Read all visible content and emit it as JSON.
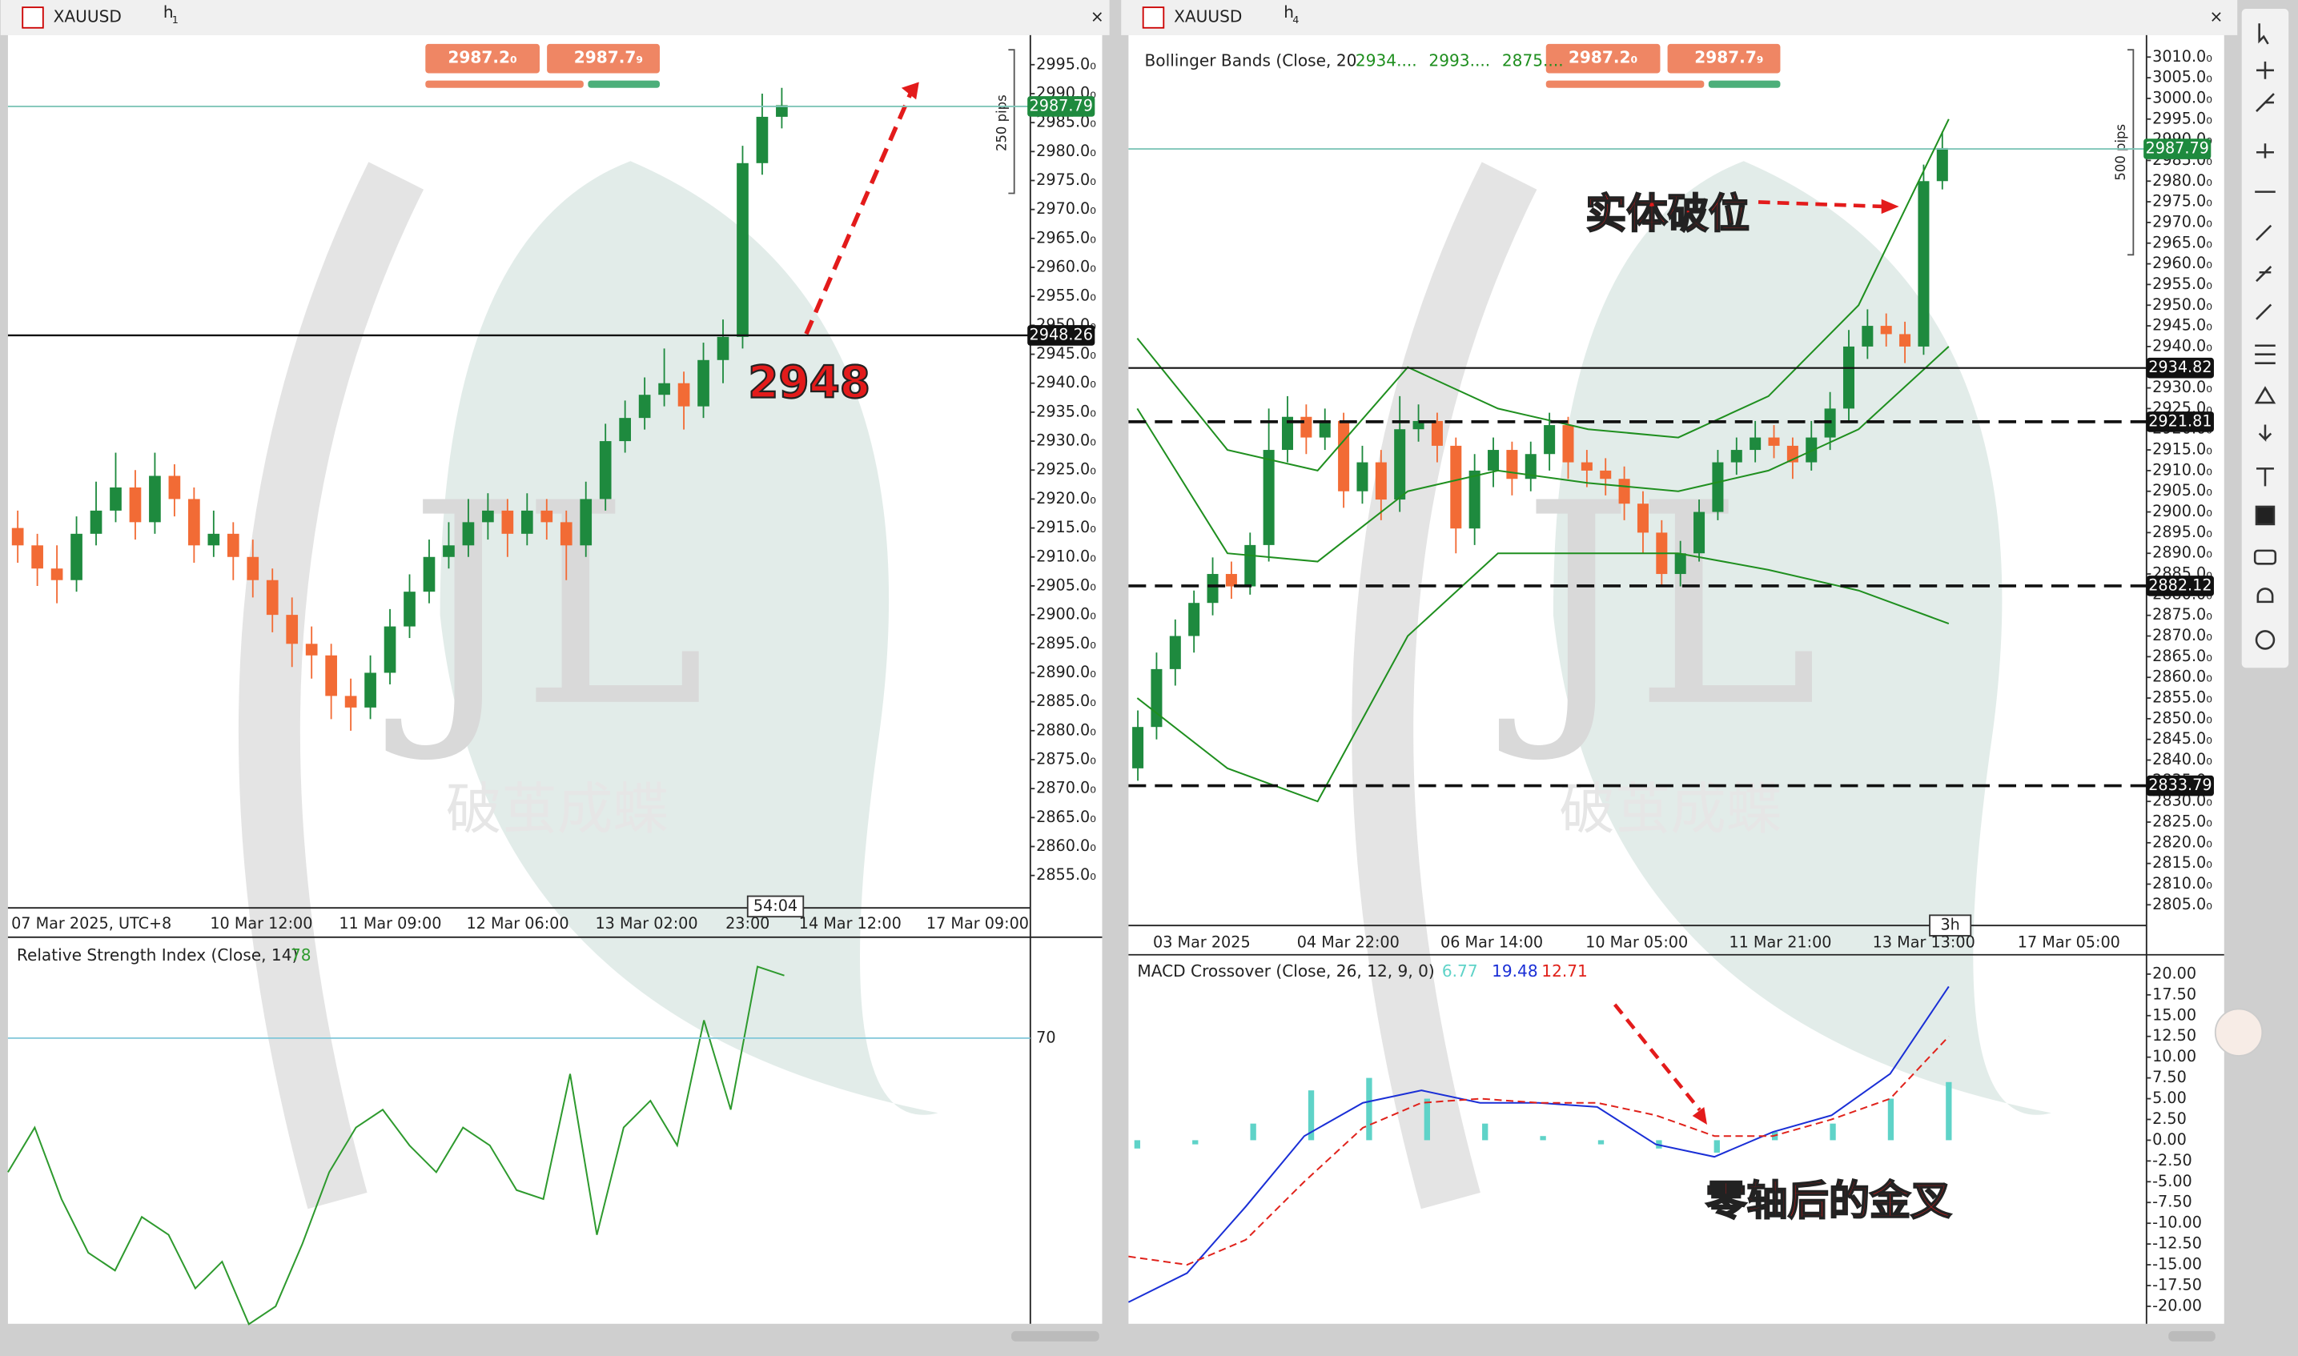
{
  "left": {
    "symbol": "XAUUSD",
    "tf": "h",
    "tf_n": "1",
    "sell": "2987.2₀",
    "buy": "2987.7₉",
    "pips": "250 pips",
    "price": {
      "type": "candlestick",
      "up_color": "#1e8a3e",
      "down_color": "#f26b35",
      "ylim": [
        2849.4,
        3000.1
      ],
      "yticks": [
        {
          "value": 2855,
          "label": "2855.0₀"
        },
        {
          "value": 2860,
          "label": "2860.0₀"
        },
        {
          "value": 2865,
          "label": "2865.0₀"
        },
        {
          "value": 2870,
          "label": "2870.0₀"
        },
        {
          "value": 2875,
          "label": "2875.0₀"
        },
        {
          "value": 2880,
          "label": "2880.0₀"
        },
        {
          "value": 2885,
          "label": "2885.0₀"
        },
        {
          "value": 2890,
          "label": "2890.0₀"
        },
        {
          "value": 2895,
          "label": "2895.0₀"
        },
        {
          "value": 2900,
          "label": "2900.0₀"
        },
        {
          "value": 2905,
          "label": "2905.0₀"
        },
        {
          "value": 2910,
          "label": "2910.0₀"
        },
        {
          "value": 2915,
          "label": "2915.0₀"
        },
        {
          "value": 2920,
          "label": "2920.0₀"
        },
        {
          "value": 2925,
          "label": "2925.0₀"
        },
        {
          "value": 2930,
          "label": "2930.0₀"
        },
        {
          "value": 2935,
          "label": "2935.0₀"
        },
        {
          "value": 2940,
          "label": "2940.0₀"
        },
        {
          "value": 2945,
          "label": "2945.0₀"
        },
        {
          "value": 2950,
          "label": "2950.0₀"
        },
        {
          "value": 2955,
          "label": "2955.0₀"
        },
        {
          "value": 2960,
          "label": "2960.0₀"
        },
        {
          "value": 2965,
          "label": "2965.0₀"
        },
        {
          "value": 2970,
          "label": "2970.0₀"
        },
        {
          "value": 2975,
          "label": "2975.0₀"
        },
        {
          "value": 2980,
          "label": "2980.0₀"
        },
        {
          "value": 2985,
          "label": "2985.0₀"
        },
        {
          "value": 2990,
          "label": "2990.0₀"
        },
        {
          "value": 2995,
          "label": "2995.0₀"
        }
      ],
      "candles": [
        [
          2915,
          2918,
          2909,
          2912
        ],
        [
          2912,
          2914,
          2905,
          2908
        ],
        [
          2908,
          2912,
          2902,
          2906
        ],
        [
          2906,
          2917,
          2904,
          2914
        ],
        [
          2914,
          2923,
          2912,
          2918
        ],
        [
          2918,
          2928,
          2916,
          2922
        ],
        [
          2922,
          2925,
          2913,
          2916
        ],
        [
          2916,
          2928,
          2914,
          2924
        ],
        [
          2924,
          2926,
          2917,
          2920
        ],
        [
          2920,
          2922,
          2909,
          2912
        ],
        [
          2912,
          2918,
          2910,
          2914
        ],
        [
          2914,
          2916,
          2906,
          2910
        ],
        [
          2910,
          2913,
          2903,
          2906
        ],
        [
          2906,
          2908,
          2897,
          2900
        ],
        [
          2900,
          2903,
          2891,
          2895
        ],
        [
          2895,
          2898,
          2889,
          2893
        ],
        [
          2893,
          2895,
          2882,
          2886
        ],
        [
          2886,
          2889,
          2880,
          2884
        ],
        [
          2884,
          2893,
          2882,
          2890
        ],
        [
          2890,
          2901,
          2888,
          2898
        ],
        [
          2898,
          2907,
          2896,
          2904
        ],
        [
          2904,
          2913,
          2902,
          2910
        ],
        [
          2910,
          2916,
          2908,
          2912
        ],
        [
          2912,
          2920,
          2910,
          2916
        ],
        [
          2916,
          2921,
          2913,
          2918
        ],
        [
          2918,
          2920,
          2910,
          2914
        ],
        [
          2914,
          2921,
          2912,
          2918
        ],
        [
          2918,
          2920,
          2913,
          2916
        ],
        [
          2916,
          2918,
          2906,
          2912
        ],
        [
          2912,
          2923,
          2910,
          2920
        ],
        [
          2920,
          2933,
          2918,
          2930
        ],
        [
          2930,
          2937,
          2928,
          2934
        ],
        [
          2934,
          2941,
          2932,
          2938
        ],
        [
          2938,
          2946,
          2936,
          2940
        ],
        [
          2940,
          2942,
          2932,
          2936
        ],
        [
          2936,
          2947,
          2934,
          2944
        ],
        [
          2944,
          2951,
          2940,
          2948
        ],
        [
          2948,
          2981,
          2946,
          2978
        ],
        [
          2978,
          2990,
          2976,
          2986
        ],
        [
          2986,
          2991,
          2984,
          2988
        ]
      ],
      "current": 2987.79,
      "level": 2948.26,
      "annotation": "2948",
      "timer": "54:04",
      "xlabels": [
        "07 Mar 2025, UTC+8",
        "10 Mar 12:00",
        "11 Mar 09:00",
        "12 Mar 06:00",
        "13 Mar 02:00",
        "23:00",
        "14 Mar 12:00",
        "17 Mar 09:00"
      ]
    },
    "rsi": {
      "type": "line",
      "title": "Relative Strength Index (Close, 14)",
      "last": 78,
      "level": 70,
      "color": "#2e9a2e",
      "ylim": [
        38.7,
        80.8
      ],
      "values": [
        55,
        60,
        52,
        46,
        44,
        50,
        48,
        42,
        45,
        38,
        40,
        47,
        55,
        60,
        62,
        58,
        55,
        60,
        58,
        53,
        52,
        66,
        48,
        60,
        63,
        58,
        72,
        62,
        78,
        77
      ]
    }
  },
  "right": {
    "symbol": "XAUUSD",
    "tf": "h",
    "tf_n": "4",
    "sell": "2987.2₀",
    "buy": "2987.7₉",
    "pips": "500 pips",
    "price": {
      "type": "candlestick",
      "up_color": "#1e8a3e",
      "down_color": "#f26b35",
      "ylim": [
        2800,
        3015.3
      ],
      "yticks": [
        {
          "value": 2805,
          "label": "2805.0₀"
        },
        {
          "value": 2810,
          "label": "2810.0₀"
        },
        {
          "value": 2815,
          "label": "2815.0₀"
        },
        {
          "value": 2820,
          "label": "2820.0₀"
        },
        {
          "value": 2825,
          "label": "2825.0₀"
        },
        {
          "value": 2830,
          "label": "2830.0₀"
        },
        {
          "value": 2835,
          "label": "2835.0₀"
        },
        {
          "value": 2840,
          "label": "2840.0₀"
        },
        {
          "value": 2845,
          "label": "2845.0₀"
        },
        {
          "value": 2850,
          "label": "2850.0₀"
        },
        {
          "value": 2855,
          "label": "2855.0₀"
        },
        {
          "value": 2860,
          "label": "2860.0₀"
        },
        {
          "value": 2865,
          "label": "2865.0₀"
        },
        {
          "value": 2870,
          "label": "2870.0₀"
        },
        {
          "value": 2875,
          "label": "2875.0₀"
        },
        {
          "value": 2880,
          "label": "2880.0₀"
        },
        {
          "value": 2885,
          "label": "2885.0₀"
        },
        {
          "value": 2890,
          "label": "2890.0₀"
        },
        {
          "value": 2895,
          "label": "2895.0₀"
        },
        {
          "value": 2900,
          "label": "2900.0₀"
        },
        {
          "value": 2905,
          "label": "2905.0₀"
        },
        {
          "value": 2910,
          "label": "2910.0₀"
        },
        {
          "value": 2915,
          "label": "2915.0₀"
        },
        {
          "value": 2920,
          "label": "2920.0₀"
        },
        {
          "value": 2925,
          "label": "2925.0₀"
        },
        {
          "value": 2930,
          "label": "2930.0₀"
        },
        {
          "value": 2935,
          "label": "2935.0₀"
        },
        {
          "value": 2940,
          "label": "2940.0₀"
        },
        {
          "value": 2945,
          "label": "2945.0₀"
        },
        {
          "value": 2950,
          "label": "2950.0₀"
        },
        {
          "value": 2955,
          "label": "2955.0₀"
        },
        {
          "value": 2960,
          "label": "2960.0₀"
        },
        {
          "value": 2965,
          "label": "2965.0₀"
        },
        {
          "value": 2970,
          "label": "2970.0₀"
        },
        {
          "value": 2975,
          "label": "2975.0₀"
        },
        {
          "value": 2980,
          "label": "2980.0₀"
        },
        {
          "value": 2985,
          "label": "2985.0₀"
        },
        {
          "value": 2990,
          "label": "2990.0₀"
        },
        {
          "value": 2995,
          "label": "2995.0₀"
        },
        {
          "value": 3000,
          "label": "3000.0₀"
        },
        {
          "value": 3005,
          "label": "3005.0₀"
        },
        {
          "value": 3010,
          "label": "3010.0₀"
        }
      ],
      "candles": [
        [
          2838,
          2852,
          2835,
          2848
        ],
        [
          2848,
          2866,
          2845,
          2862
        ],
        [
          2862,
          2874,
          2858,
          2870
        ],
        [
          2870,
          2881,
          2866,
          2878
        ],
        [
          2878,
          2889,
          2875,
          2885
        ],
        [
          2885,
          2888,
          2879,
          2882
        ],
        [
          2882,
          2895,
          2880,
          2892
        ],
        [
          2892,
          2925,
          2888,
          2915
        ],
        [
          2915,
          2928,
          2912,
          2923
        ],
        [
          2923,
          2926,
          2914,
          2918
        ],
        [
          2918,
          2925,
          2915,
          2922
        ],
        [
          2922,
          2924,
          2901,
          2905
        ],
        [
          2905,
          2916,
          2902,
          2912
        ],
        [
          2912,
          2915,
          2898,
          2903
        ],
        [
          2903,
          2928,
          2900,
          2920
        ],
        [
          2920,
          2926,
          2917,
          2922
        ],
        [
          2922,
          2924,
          2912,
          2916
        ],
        [
          2916,
          2918,
          2890,
          2896
        ],
        [
          2896,
          2914,
          2892,
          2910
        ],
        [
          2910,
          2918,
          2906,
          2915
        ],
        [
          2915,
          2917,
          2904,
          2908
        ],
        [
          2908,
          2917,
          2905,
          2914
        ],
        [
          2914,
          2924,
          2910,
          2921
        ],
        [
          2921,
          2923,
          2908,
          2912
        ],
        [
          2912,
          2915,
          2906,
          2910
        ],
        [
          2910,
          2913,
          2904,
          2908
        ],
        [
          2908,
          2911,
          2898,
          2902
        ],
        [
          2902,
          2905,
          2890,
          2895
        ],
        [
          2895,
          2898,
          2882,
          2885
        ],
        [
          2885,
          2893,
          2882,
          2890
        ],
        [
          2890,
          2903,
          2888,
          2900
        ],
        [
          2900,
          2915,
          2898,
          2912
        ],
        [
          2912,
          2918,
          2909,
          2915
        ],
        [
          2915,
          2922,
          2912,
          2918
        ],
        [
          2918,
          2921,
          2913,
          2916
        ],
        [
          2916,
          2918,
          2908,
          2912
        ],
        [
          2912,
          2922,
          2910,
          2918
        ],
        [
          2918,
          2929,
          2915,
          2925
        ],
        [
          2925,
          2944,
          2922,
          2940
        ],
        [
          2940,
          2949,
          2937,
          2945
        ],
        [
          2945,
          2948,
          2940,
          2943
        ],
        [
          2943,
          2946,
          2936,
          2940
        ],
        [
          2940,
          2984,
          2938,
          2980
        ],
        [
          2980,
          2992,
          2978,
          2988
        ]
      ],
      "current": 2987.79,
      "levels": [
        {
          "value": 2934.82,
          "dashed": false
        },
        {
          "value": 2921.81,
          "dashed": true
        },
        {
          "value": 2882.12,
          "dashed": true
        },
        {
          "value": 2833.79,
          "dashed": true
        }
      ],
      "bollinger": {
        "title": "Bollinger Bands (Close, 20",
        "labels": [
          "2934....",
          "2993....",
          "2875...."
        ],
        "color": "#1f8f1f",
        "upper": [
          2942,
          2915,
          2910,
          2935,
          2925,
          2920,
          2918,
          2928,
          2950,
          2995
        ],
        "middle": [
          2925,
          2890,
          2888,
          2905,
          2910,
          2907,
          2905,
          2910,
          2920,
          2940
        ],
        "lower": [
          2855,
          2838,
          2830,
          2870,
          2890,
          2890,
          2890,
          2886,
          2881,
          2873
        ]
      },
      "annotation": "实体破位",
      "timer": "3h",
      "xlabels": [
        "03 Mar 2025",
        "04 Mar 22:00",
        "06 Mar 14:00",
        "10 Mar 05:00",
        "11 Mar 21:00",
        "13 Mar 13:00",
        "17 Mar 05:00"
      ]
    },
    "macd": {
      "type": "line",
      "title": "MACD Crossover (Close, 26, 12, 9, 0)",
      "histogram_last": 6.77,
      "macd_last": 19.48,
      "signal_last": 12.71,
      "ylim": [
        -21.4,
        21.8
      ],
      "yticks": [
        {
          "value": 20,
          "label": "20.00"
        },
        {
          "value": 17.5,
          "label": "17.50"
        },
        {
          "value": 15,
          "label": "15.00"
        },
        {
          "value": 12.5,
          "label": "12.50"
        },
        {
          "value": 10,
          "label": "10.00"
        },
        {
          "value": 7.5,
          "label": "7.50"
        },
        {
          "value": 5,
          "label": "5.00"
        },
        {
          "value": 2.5,
          "label": "2.50"
        },
        {
          "value": 0,
          "label": "0.00"
        },
        {
          "value": -2.5,
          "label": "-2.50"
        },
        {
          "value": -5,
          "label": "-5.00"
        },
        {
          "value": -7.5,
          "label": "-7.50"
        },
        {
          "value": -10,
          "label": "-10.00"
        },
        {
          "value": -12.5,
          "label": "-12.50"
        },
        {
          "value": -15,
          "label": "-15.00"
        },
        {
          "value": -17.5,
          "label": "-17.50"
        },
        {
          "value": -20,
          "label": "-20.00"
        }
      ],
      "macd": [
        -19.5,
        -16,
        -8,
        0.5,
        4.5,
        6,
        4.5,
        4.5,
        4,
        -0.5,
        -2,
        1,
        3,
        8,
        18.5
      ],
      "macd_color": "#1a2fd6",
      "signal": [
        -14,
        -15,
        -12,
        -5,
        1.5,
        4.5,
        5,
        4.5,
        4.5,
        3,
        0.5,
        0.5,
        2.5,
        5,
        12.5
      ],
      "signal_color": "#e0221b",
      "histogram": [
        -1,
        -0.5,
        2,
        6,
        7.5,
        5,
        2,
        0.5,
        -0.5,
        -1,
        -1.5,
        1,
        2,
        5,
        7
      ],
      "histogram_color": "#5fd3c8",
      "annotation": "零轴后的金叉"
    }
  },
  "watermark": {
    "logo": "JL",
    "slogan": "破茧成蝶"
  }
}
